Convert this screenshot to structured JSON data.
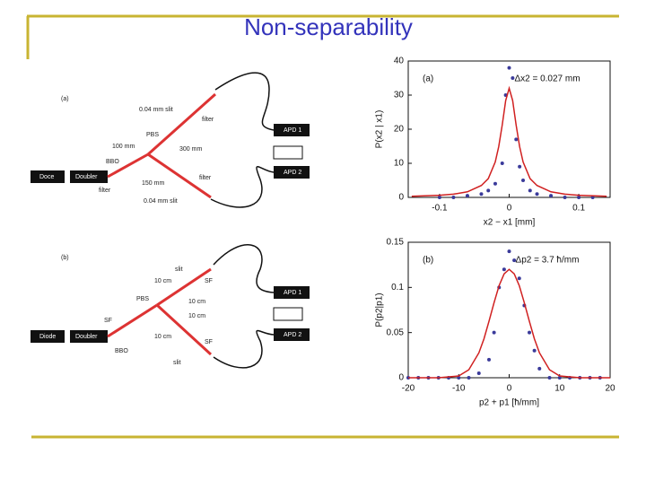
{
  "title": "Non-separability",
  "diagrams": {
    "a": {
      "label": "(a)",
      "texts": [
        "0.04 mm slit",
        "filter",
        "PBS",
        "100 mm",
        "300 mm",
        "BBO",
        "Doce",
        "Doubler",
        "filter",
        "150 mm",
        "filter",
        "0.04 mm slit",
        "APD 1",
        "APD 2"
      ]
    },
    "b": {
      "label": "(b)",
      "texts": [
        "slit",
        "10 cm",
        "SF",
        "PBS",
        "10 cm",
        "SF",
        "10 cm",
        "Diode",
        "Doubler",
        "10 cm",
        "SF",
        "BBO",
        "slit",
        "APD 1",
        "APD 2"
      ]
    }
  },
  "chart_data": [
    {
      "type": "scatter",
      "annotation": "(a)",
      "note": "Δx2 = 0.027 mm",
      "xlabel": "x2 − x1 [mm]",
      "ylabel": "P(x2 | x1)",
      "xlim": [
        -0.145,
        0.145
      ],
      "xticks": [
        -0.1,
        0,
        0.1
      ],
      "ylim": [
        0,
        40
      ],
      "yticks": [
        0,
        10,
        20,
        30,
        40
      ],
      "series": [
        {
          "color": "#3a3a9a",
          "line": false,
          "x": [
            -0.1,
            -0.08,
            -0.06,
            -0.04,
            -0.03,
            -0.02,
            -0.01,
            -0.005,
            0,
            0.005,
            0.01,
            0.015,
            0.02,
            0.03,
            0.04,
            0.06,
            0.08,
            0.1,
            0.12
          ],
          "values": [
            0,
            0,
            0.5,
            1,
            2,
            4,
            10,
            30,
            38,
            35,
            17,
            9,
            5,
            2,
            1,
            0.5,
            0,
            0,
            0
          ]
        },
        {
          "color": "#d02020",
          "line": true,
          "x": [
            -0.14,
            -0.1,
            -0.08,
            -0.06,
            -0.04,
            -0.03,
            -0.02,
            -0.015,
            -0.01,
            -0.005,
            0,
            0.005,
            0.01,
            0.015,
            0.02,
            0.03,
            0.04,
            0.06,
            0.08,
            0.1,
            0.14
          ],
          "values": [
            0.32,
            0.61,
            0.95,
            1.64,
            3.49,
            5.52,
            10.4,
            14.9,
            21.2,
            28.4,
            32,
            28.4,
            21.2,
            14.9,
            10.4,
            5.52,
            3.49,
            1.64,
            0.95,
            0.61,
            0.32
          ]
        }
      ]
    },
    {
      "type": "scatter",
      "annotation": "(b)",
      "note": "Δp2 = 3.7 ħ/mm",
      "xlabel": "p2 + p1 [ħ/mm]",
      "ylabel": "P(p2|p1)",
      "xlim": [
        -20,
        20
      ],
      "xticks": [
        -20,
        -10,
        0,
        10,
        20
      ],
      "ylim": [
        0,
        0.15
      ],
      "yticks": [
        0,
        0.05,
        0.1,
        0.15
      ],
      "series": [
        {
          "color": "#3a3a9a",
          "line": false,
          "x": [
            -20,
            -18,
            -16,
            -14,
            -12,
            -10,
            -8,
            -6,
            -4,
            -3,
            -2,
            -1,
            0,
            1,
            2,
            3,
            4,
            5,
            6,
            8,
            10,
            12,
            14,
            16,
            18
          ],
          "values": [
            0,
            0,
            0,
            0,
            0,
            0,
            0,
            0.005,
            0.02,
            0.05,
            0.1,
            0.12,
            0.14,
            0.13,
            0.11,
            0.08,
            0.05,
            0.03,
            0.01,
            0,
            0,
            0,
            0,
            0,
            0
          ]
        },
        {
          "color": "#d02020",
          "line": true,
          "x": [
            -20,
            -14,
            -10,
            -8,
            -6,
            -5,
            -4,
            -3,
            -2,
            -1,
            0,
            1,
            2,
            3,
            4,
            5,
            6,
            8,
            10,
            14,
            20
          ],
          "values": [
            0,
            0,
            0.002,
            0.0088,
            0.0276,
            0.043,
            0.0625,
            0.083,
            0.102,
            0.115,
            0.12,
            0.115,
            0.102,
            0.083,
            0.0625,
            0.043,
            0.0276,
            0.0088,
            0.002,
            0,
            0
          ]
        }
      ]
    }
  ]
}
